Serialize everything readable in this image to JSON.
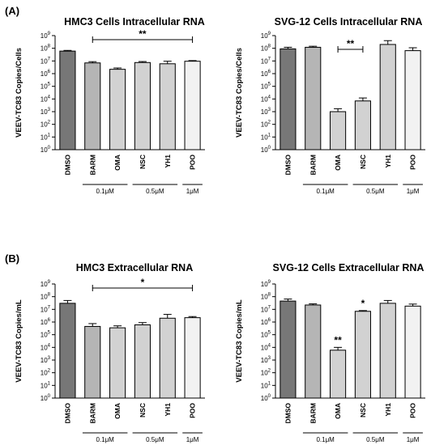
{
  "panels": {
    "a": "(A)",
    "b": "(B)"
  },
  "chart_data": [
    {
      "type": "bar",
      "title": "HMC3 Cells Intracellular RNA",
      "ylabel": "VEEV-TC83 Copies/Cells",
      "yscale": "log",
      "ylim": [
        1,
        1000000000
      ],
      "categories": [
        "DMSO",
        "BARM",
        "OMA",
        "NSC",
        "YH1",
        "POO"
      ],
      "values": [
        60000000,
        7000000,
        2200000,
        7500000,
        6000000,
        9500000
      ],
      "errors": [
        8000000,
        1800000,
        600000,
        1500000,
        3500000,
        1200000
      ],
      "colors": [
        "#777777",
        "#b5b5b5",
        "#d2d2d2",
        "#d2d2d2",
        "#d2d2d2",
        "#f2f2f2"
      ],
      "groups": [
        {
          "label": "0.1μM",
          "from": 1,
          "to": 2
        },
        {
          "label": "0.5μM",
          "from": 3,
          "to": 4
        },
        {
          "label": "1μM",
          "from": 5,
          "to": 5
        }
      ],
      "significance": [
        {
          "label": "**",
          "from": 1,
          "to": 5
        }
      ]
    },
    {
      "type": "bar",
      "title": "SVG-12 Cells Intracellular RNA",
      "ylabel": "VEEV-TC83 Copies/Cells",
      "yscale": "log",
      "ylim": [
        1,
        1000000000
      ],
      "categories": [
        "DMSO",
        "BARM",
        "OMA",
        "NSC",
        "YH1",
        "POO"
      ],
      "values": [
        90000000,
        120000000,
        1000,
        7000,
        200000000,
        65000000
      ],
      "errors": [
        30000000,
        25000000,
        700,
        5000,
        200000000,
        45000000
      ],
      "colors": [
        "#777777",
        "#b5b5b5",
        "#d2d2d2",
        "#d2d2d2",
        "#d2d2d2",
        "#f2f2f2"
      ],
      "groups": [
        {
          "label": "0.1μM",
          "from": 1,
          "to": 2
        },
        {
          "label": "0.5μM",
          "from": 3,
          "to": 4
        },
        {
          "label": "1μM",
          "from": 5,
          "to": 5
        }
      ],
      "significance": [
        {
          "label": "**",
          "from": 2,
          "to": 3
        }
      ]
    },
    {
      "type": "bar",
      "title": "HMC3 Extracellular RNA",
      "ylabel": "VEEV-TC83 Copies/mL",
      "yscale": "log",
      "ylim": [
        1,
        1000000000
      ],
      "categories": [
        "DMSO",
        "BARM",
        "OMA",
        "NSC",
        "YH1",
        "POO"
      ],
      "values": [
        30000000,
        450000,
        350000,
        600000,
        2000000,
        2200000
      ],
      "errors": [
        20000000,
        300000,
        150000,
        300000,
        2000000,
        500000
      ],
      "colors": [
        "#777777",
        "#b5b5b5",
        "#d2d2d2",
        "#d2d2d2",
        "#d2d2d2",
        "#f2f2f2"
      ],
      "groups": [
        {
          "label": "0.1μM",
          "from": 1,
          "to": 2
        },
        {
          "label": "0.5μM",
          "from": 3,
          "to": 4
        },
        {
          "label": "1μM",
          "from": 5,
          "to": 5
        }
      ],
      "significance": [
        {
          "label": "*",
          "from": 1,
          "to": 5
        }
      ]
    },
    {
      "type": "bar",
      "title": "SVG-12 Cells Extracellular RNA",
      "ylabel": "VEEV-TC83 Copies/mL",
      "yscale": "log",
      "ylim": [
        1,
        1000000000
      ],
      "categories": [
        "DMSO",
        "BARM",
        "OMA",
        "NSC",
        "YH1",
        "POO"
      ],
      "values": [
        45000000,
        22000000,
        6000,
        7000000,
        30000000,
        18000000
      ],
      "errors": [
        20000000,
        5000000,
        4000,
        1000000,
        20000000,
        8000000
      ],
      "colors": [
        "#777777",
        "#b5b5b5",
        "#d2d2d2",
        "#d2d2d2",
        "#d2d2d2",
        "#f2f2f2"
      ],
      "groups": [
        {
          "label": "0.1μM",
          "from": 1,
          "to": 2
        },
        {
          "label": "0.5μM",
          "from": 3,
          "to": 4
        },
        {
          "label": "1μM",
          "from": 5,
          "to": 5
        }
      ],
      "significance": [
        {
          "label": "**",
          "from": 2,
          "to": 2
        },
        {
          "label": "*",
          "from": 3,
          "to": 3
        }
      ]
    }
  ]
}
